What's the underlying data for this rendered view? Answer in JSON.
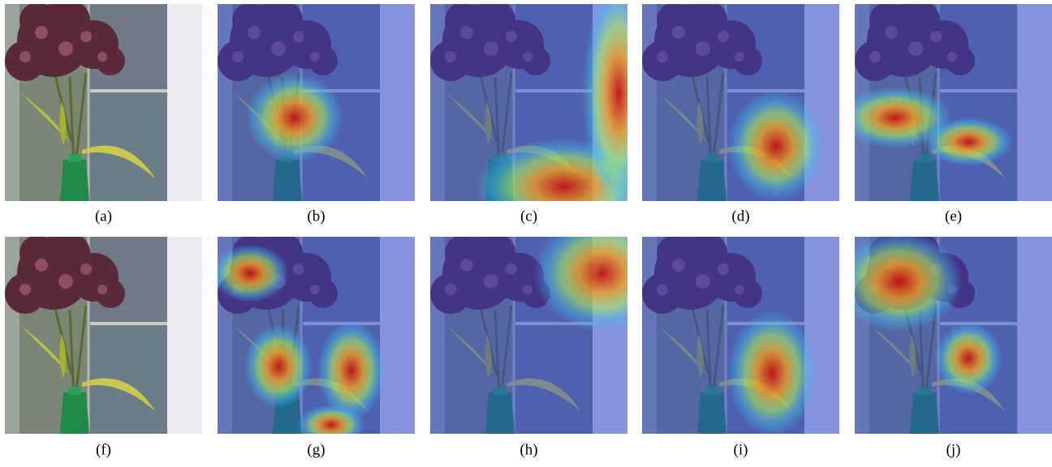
{
  "panels": [
    {
      "caption": "(a)"
    },
    {
      "caption": "(b)"
    },
    {
      "caption": "(c)"
    },
    {
      "caption": "(d)"
    },
    {
      "caption": "(e)"
    },
    {
      "caption": "(f)"
    },
    {
      "caption": "(g)"
    },
    {
      "caption": "(h)"
    },
    {
      "caption": "(i)"
    },
    {
      "caption": "(j)"
    }
  ]
}
